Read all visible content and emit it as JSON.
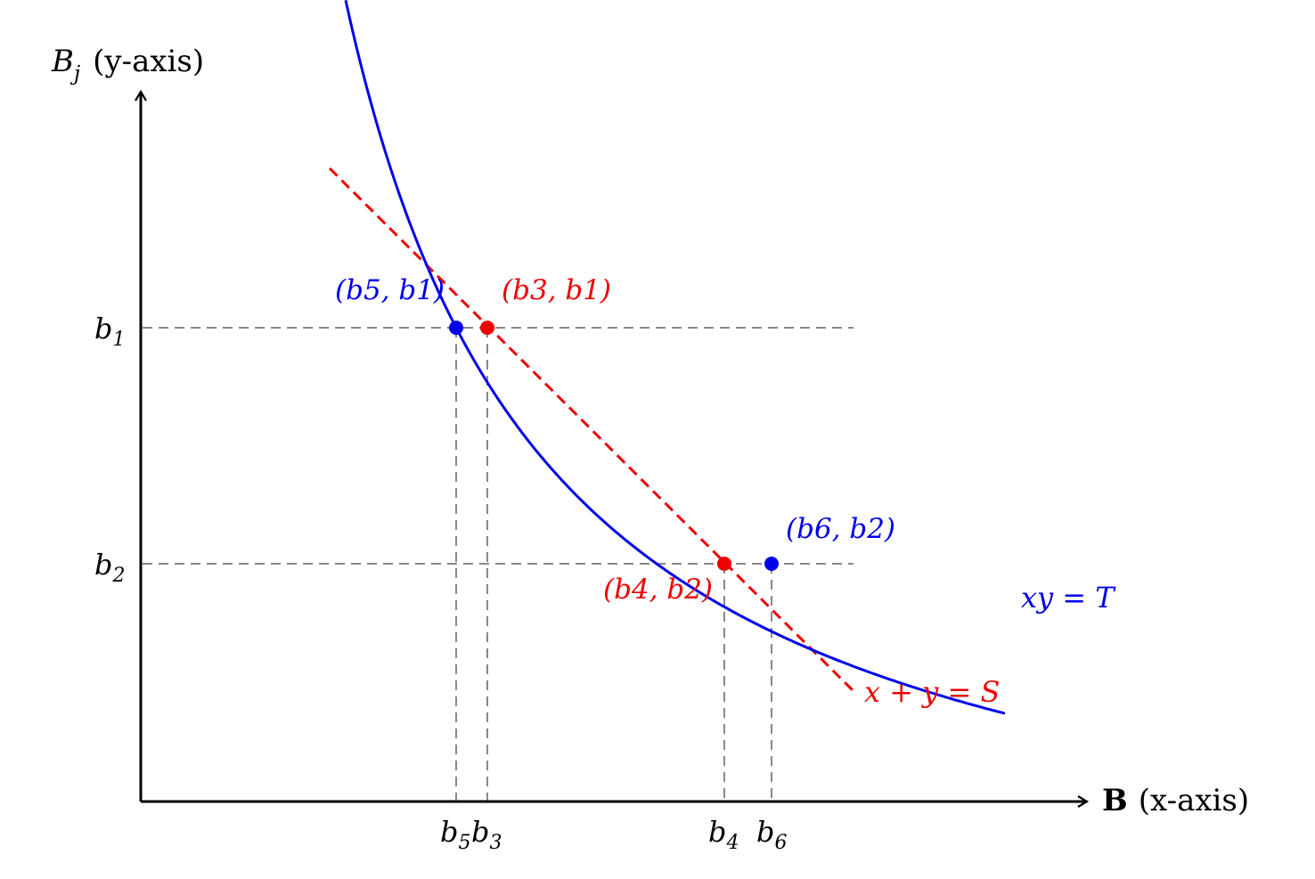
{
  "axes": {
    "x_label_bold": "B",
    "x_label_rest": "(x-axis)",
    "y_label_main": "B",
    "y_label_sub": "j",
    "y_label_rest": "(y-axis)"
  },
  "ticks": {
    "y": [
      {
        "base": "b",
        "sub": "1"
      },
      {
        "base": "b",
        "sub": "2"
      }
    ],
    "x": [
      {
        "base": "b",
        "sub": "5"
      },
      {
        "base": "b",
        "sub": "3"
      },
      {
        "base": "b",
        "sub": "4"
      },
      {
        "base": "b",
        "sub": "6"
      }
    ]
  },
  "curves": {
    "hyperbola_label": "xy = T",
    "hyperbola_color": "#0000ee",
    "line_label": "x + y = S",
    "line_color": "#ee0000",
    "guide_color": "#888888"
  },
  "points": [
    {
      "label": "(b5, b1)",
      "color": "blue"
    },
    {
      "label": "(b3, b1)",
      "color": "red"
    },
    {
      "label": "(b4, b2)",
      "color": "red"
    },
    {
      "label": "(b6, b2)",
      "color": "blue"
    }
  ]
}
